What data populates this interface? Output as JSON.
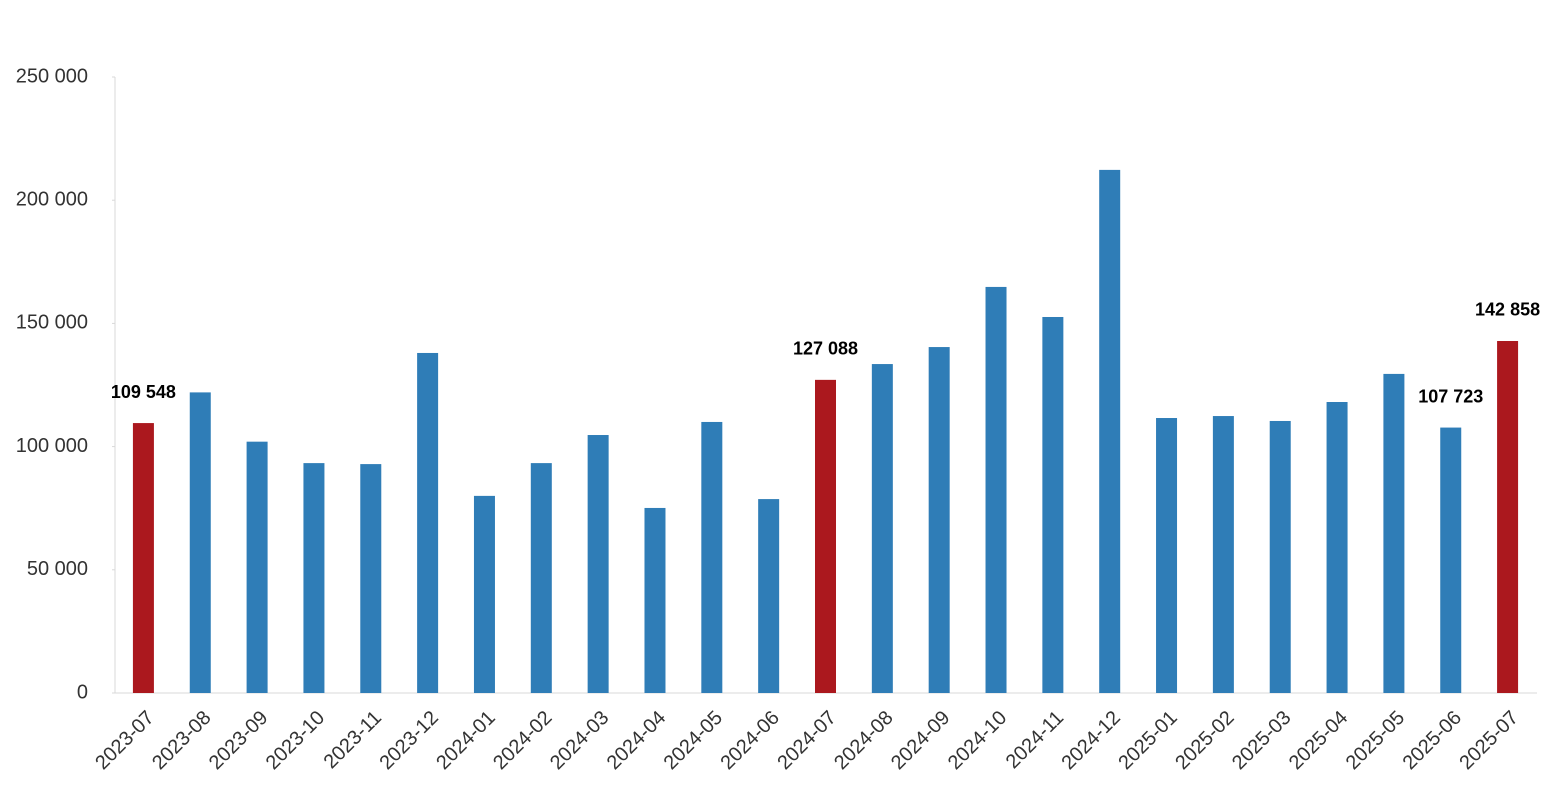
{
  "chart_data": {
    "type": "bar",
    "categories": [
      "2023-07",
      "2023-08",
      "2023-09",
      "2023-10",
      "2023-11",
      "2023-12",
      "2024-01",
      "2024-02",
      "2024-03",
      "2024-04",
      "2024-05",
      "2024-06",
      "2024-07",
      "2024-08",
      "2024-09",
      "2024-10",
      "2024-11",
      "2024-12",
      "2025-01",
      "2025-02",
      "2025-03",
      "2025-04",
      "2025-05",
      "2025-06",
      "2025-07"
    ],
    "values": [
      109548,
      122000,
      102000,
      93300,
      92900,
      138000,
      80000,
      93300,
      104700,
      75100,
      110000,
      78700,
      127088,
      133500,
      140400,
      164800,
      152600,
      212300,
      111600,
      112400,
      110400,
      118100,
      129500,
      107723,
      142858
    ],
    "value_labels": [
      "109 548",
      null,
      null,
      null,
      null,
      null,
      null,
      null,
      null,
      null,
      null,
      null,
      "127 088",
      null,
      null,
      null,
      null,
      null,
      null,
      null,
      null,
      null,
      null,
      "107 723",
      "142 858"
    ],
    "colors": [
      "#ab181e",
      "#2f7db7",
      "#2f7db7",
      "#2f7db7",
      "#2f7db7",
      "#2f7db7",
      "#2f7db7",
      "#2f7db7",
      "#2f7db7",
      "#2f7db7",
      "#2f7db7",
      "#2f7db7",
      "#ab181e",
      "#2f7db7",
      "#2f7db7",
      "#2f7db7",
      "#2f7db7",
      "#2f7db7",
      "#2f7db7",
      "#2f7db7",
      "#2f7db7",
      "#2f7db7",
      "#2f7db7",
      "#2f7db7",
      "#ab181e"
    ],
    "ylim": [
      0,
      250000
    ],
    "yticks": [
      {
        "value": 0,
        "label": "0"
      },
      {
        "value": 50000,
        "label": "50 000"
      },
      {
        "value": 100000,
        "label": "100 000"
      },
      {
        "value": 150000,
        "label": "150 000"
      },
      {
        "value": 200000,
        "label": "200 000"
      },
      {
        "value": 250000,
        "label": "250 000"
      }
    ],
    "grid": false
  }
}
